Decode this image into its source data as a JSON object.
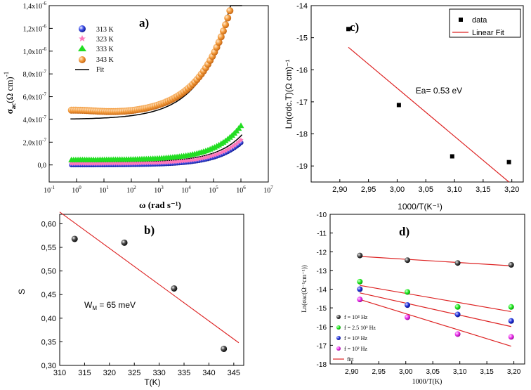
{
  "chart_data": [
    {
      "panel_label": "a)",
      "type": "scatter",
      "xscale": "log",
      "xlabel": "ω (rad s⁻¹)",
      "ylabel": "σac(Ω cm)⁻¹",
      "ylabel_main": "σ",
      "ylabel_sub": "ac",
      "ylabel_rest": "(Ω cm)",
      "ylabel_sup": "-1",
      "xlim": [
        0.1,
        10000000
      ],
      "ylim": [
        -1.5e-07,
        1.4e-06
      ],
      "xticks": [
        {
          "value": 0.1,
          "base": "10",
          "exp": "-1"
        },
        {
          "value": 1,
          "base": "10",
          "exp": "0"
        },
        {
          "value": 10,
          "base": "10",
          "exp": "1"
        },
        {
          "value": 100,
          "base": "10",
          "exp": "2"
        },
        {
          "value": 1000,
          "base": "10",
          "exp": "3"
        },
        {
          "value": 10000,
          "base": "10",
          "exp": "4"
        },
        {
          "value": 100000,
          "base": "10",
          "exp": "5"
        },
        {
          "value": 1000000,
          "base": "10",
          "exp": "6"
        },
        {
          "value": 10000000,
          "base": "10",
          "exp": "7"
        }
      ],
      "yticks": [
        {
          "value": 0,
          "mant": "0,0",
          "exp": ""
        },
        {
          "value": 2e-07,
          "mant": "2,0x10",
          "exp": "-7"
        },
        {
          "value": 4e-07,
          "mant": "4,0x10",
          "exp": "-7"
        },
        {
          "value": 6e-07,
          "mant": "6,0x10",
          "exp": "-7"
        },
        {
          "value": 8e-07,
          "mant": "8,0x10",
          "exp": "-7"
        },
        {
          "value": 1e-06,
          "mant": "1,0x10",
          "exp": "-6"
        },
        {
          "value": 1.2e-06,
          "mant": "1,2x10",
          "exp": "-6"
        },
        {
          "value": 1.4e-06,
          "mant": "1,4x10",
          "exp": "-6"
        }
      ],
      "series": [
        {
          "name": "313 K",
          "marker": "circle",
          "color": "#2233cc",
          "sigma0": 5e-10,
          "A": 3.4e-10,
          "s": 0.46,
          "zero_offset": 0
        },
        {
          "name": "323 K",
          "marker": "star",
          "color": "#ff77bb",
          "sigma0": 1.2e-08,
          "A": 3.6e-10,
          "s": 0.46,
          "zero_offset": 0
        },
        {
          "name": "333 K",
          "marker": "triangle",
          "color": "#22dd22",
          "sigma0": 4.5e-08,
          "A": 6e-10,
          "s": 0.45,
          "zero_offset": 0
        },
        {
          "name": "343 K",
          "marker": "circle",
          "color": "#f39a3a",
          "sigma0": 4.4e-07,
          "A": 6e-09,
          "s": 0.39,
          "zero_offset": 0
        }
      ],
      "fit_name": "Fit",
      "fit_color": "#000000",
      "fit_curves": [
        {
          "sigma0": 1e-08,
          "A": 3.4e-10,
          "s": 0.46
        },
        {
          "sigma0": 2.5e-08,
          "A": 4e-10,
          "s": 0.46
        },
        {
          "sigma0": 4e-07,
          "A": 5e-09,
          "s": 0.41
        }
      ],
      "legend_position": "top-left"
    },
    {
      "panel_label": "c)",
      "type": "scatter",
      "xlabel": "1000/T(K⁻¹)",
      "ylabel": "Ln(σdc.T)(Ω cm)⁻¹",
      "xlim": [
        2.85,
        3.22
      ],
      "ylim": [
        -19.5,
        -14
      ],
      "xticks": [
        "2,90",
        "2,95",
        "3,00",
        "3,05",
        "3,10",
        "3,15",
        "3,20"
      ],
      "xtick_values": [
        2.9,
        2.95,
        3.0,
        3.05,
        3.1,
        3.15,
        3.2
      ],
      "yticks": [
        "-14",
        "-15",
        "-16",
        "-17",
        "-18",
        "-19"
      ],
      "ytick_values": [
        -14,
        -15,
        -16,
        -17,
        -18,
        -19
      ],
      "x": [
        2.915,
        3.003,
        3.096,
        3.195
      ],
      "y": [
        -14.73,
        -17.1,
        -18.7,
        -18.88
      ],
      "fit_line": {
        "x": [
          2.915,
          3.195
        ],
        "y": [
          -15.3,
          -19.5
        ],
        "color": "#dd2222"
      },
      "legend": [
        {
          "label": "data",
          "marker": "square"
        },
        {
          "label": "Linear Fit",
          "marker": "line"
        }
      ],
      "annotation": "Ea= 0.53 eV"
    },
    {
      "panel_label": "b)",
      "type": "scatter",
      "xlabel": "T(K)",
      "ylabel": "S",
      "xlim": [
        310,
        347
      ],
      "ylim": [
        0.3,
        0.62
      ],
      "xticks": [
        "310",
        "315",
        "320",
        "325",
        "330",
        "335",
        "340",
        "345"
      ],
      "xtick_values": [
        310,
        315,
        320,
        325,
        330,
        335,
        340,
        345
      ],
      "yticks": [
        "0,30",
        "0,35",
        "0,40",
        "0,45",
        "0,50",
        "0,55",
        "0,60"
      ],
      "ytick_values": [
        0.3,
        0.35,
        0.4,
        0.45,
        0.5,
        0.55,
        0.6
      ],
      "x": [
        313,
        323,
        333,
        343
      ],
      "y": [
        0.568,
        0.56,
        0.463,
        0.335
      ],
      "fit_line": {
        "x": [
          310,
          346
        ],
        "y": [
          0.625,
          0.348
        ],
        "color": "#dd2222"
      },
      "annotation_main": "W",
      "annotation_sub": "M",
      "annotation_rest": " = 65 meV"
    },
    {
      "panel_label": "d)",
      "type": "scatter",
      "xlabel": "1000/T(K)",
      "ylabel": "Ln(σac(Ω⁻¹cm⁻¹))",
      "xlim": [
        2.86,
        3.22
      ],
      "ylim": [
        -18,
        -10
      ],
      "xticks": [
        "2,90",
        "2,95",
        "3,00",
        "3,05",
        "3,10",
        "3,15",
        "3,20"
      ],
      "xtick_values": [
        2.9,
        2.95,
        3.0,
        3.05,
        3.1,
        3.15,
        3.2
      ],
      "yticks": [
        "-10",
        "-11",
        "-12",
        "-13",
        "-14",
        "-15",
        "-16",
        "-17",
        "-18"
      ],
      "ytick_values": [
        -10,
        -11,
        -12,
        -13,
        -14,
        -15,
        -16,
        -17,
        -18
      ],
      "series": [
        {
          "name": "f = 10⁴ Hz",
          "color": "#222222",
          "x": [
            2.915,
            3.003,
            3.096,
            3.195
          ],
          "y": [
            -12.2,
            -12.45,
            -12.6,
            -12.7
          ],
          "fit": [
            -12.25,
            -12.75
          ]
        },
        {
          "name": "f = 2.5 10³ Hz",
          "color": "#22ee22",
          "x": [
            2.915,
            3.003,
            3.096,
            3.195
          ],
          "y": [
            -13.6,
            -14.15,
            -14.95,
            -14.95
          ],
          "fit": [
            -13.8,
            -15.2
          ]
        },
        {
          "name": "f = 10³ Hz",
          "color": "#2233dd",
          "x": [
            2.915,
            3.003,
            3.096,
            3.195
          ],
          "y": [
            -14.0,
            -14.85,
            -15.35,
            -15.7
          ],
          "fit": [
            -14.2,
            -16.0
          ]
        },
        {
          "name": "f = 10² Hz",
          "color": "#ee33ee",
          "x": [
            2.915,
            3.003,
            3.096,
            3.195
          ],
          "y": [
            -14.55,
            -15.5,
            -16.4,
            -16.55
          ],
          "fit": [
            -14.55,
            -17.05
          ]
        }
      ],
      "fit_name": "fitt",
      "fit_color": "#dd2222",
      "legend_position": "bottom-left"
    }
  ]
}
